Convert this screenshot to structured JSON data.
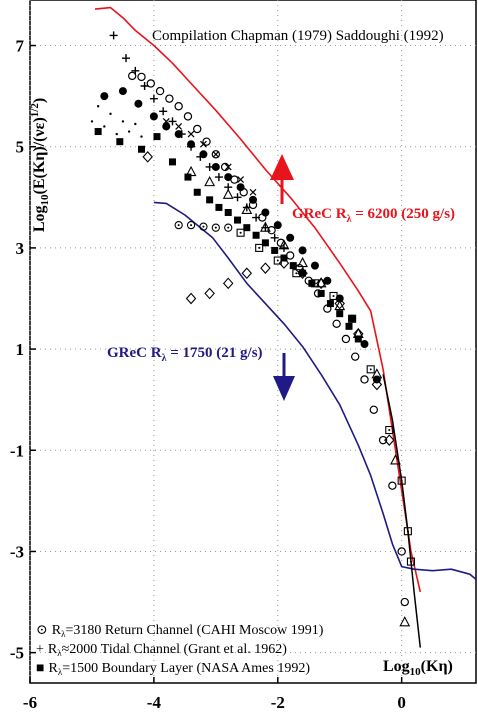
{
  "chart_data": {
    "type": "scatter",
    "title": "Compilation Chapman (1979) Saddoughi (1992)",
    "xlabel_main": "Log",
    "xlabel_sub": "10",
    "xlabel_tail": "(Kη)",
    "ylabel_main": "Log",
    "ylabel_sub": "10",
    "ylabel_tail": "(E(Kη)/(νε)",
    "ylabel_exp": "1/2",
    "ylabel_close": ")",
    "xlim": [
      -6,
      1.2
    ],
    "ylim": [
      -5.6,
      7.9
    ],
    "xticks": [
      -6,
      -4,
      -2,
      0
    ],
    "xtick_labels": [
      "-6",
      "-4",
      "-2",
      "0"
    ],
    "yticks": [
      7,
      5,
      3,
      1,
      -1,
      -3,
      -5
    ],
    "ytick_labels": [
      "7",
      "5",
      "3",
      "1",
      "-1",
      "-3",
      "-5"
    ],
    "grid": true,
    "annotations": {
      "red": {
        "lead": "GReC R",
        "sub": "λ",
        "tail": " = 6200 (250 g/s)",
        "color": "#e8141b"
      },
      "blue": {
        "lead": "GReC R",
        "sub": "λ",
        "tail": " = 1750 (21 g/s)",
        "color": "#1f1a85"
      }
    },
    "legend": [
      {
        "symbol": "⊙",
        "lead": "R",
        "sub": "λ",
        "tail": "=3180 Return Channel (CAHI Moscow 1991)"
      },
      {
        "symbol": "+",
        "lead": "R",
        "sub": "λ",
        "tail": "≈2000 Tidal Channel (Grant et al. 1962)"
      },
      {
        "symbol": "■",
        "lead": "R",
        "sub": "λ",
        "tail": "=1500 Boundary Layer (NASA Ames 1992)"
      }
    ],
    "series": [
      {
        "name": "GReC Rλ = 6200 (250 g/s)",
        "color": "#e8141b",
        "style": "line",
        "x": [
          -4.95,
          -4.7,
          -4.5,
          -4.3,
          -4.0,
          -3.7,
          -3.4,
          -3.0,
          -2.6,
          -2.2,
          -1.8,
          -1.4,
          -1.0,
          -0.7,
          -0.5,
          -0.3,
          -0.15,
          0.0,
          0.15,
          0.3
        ],
        "y": [
          7.72,
          7.75,
          7.55,
          7.3,
          7.0,
          6.65,
          6.25,
          5.72,
          5.15,
          4.55,
          4.0,
          3.4,
          2.7,
          2.15,
          1.75,
          0.6,
          -0.6,
          -1.8,
          -3.0,
          -3.8
        ]
      },
      {
        "name": "GReC Rλ = 1750 (21 g/s)",
        "color": "#1f1a85",
        "style": "line",
        "x": [
          -4.0,
          -3.8,
          -3.5,
          -3.3,
          -3.05,
          -2.8,
          -2.5,
          -2.2,
          -1.9,
          -1.6,
          -1.3,
          -1.0,
          -0.7,
          -0.5,
          -0.3,
          -0.15,
          0.0,
          0.2,
          0.5,
          0.8,
          1.1,
          1.2
        ],
        "y": [
          3.9,
          3.88,
          3.65,
          3.45,
          3.2,
          2.8,
          2.3,
          1.9,
          1.5,
          1.05,
          0.5,
          -0.1,
          -0.9,
          -1.5,
          -2.25,
          -2.85,
          -3.3,
          -3.35,
          -3.38,
          -3.35,
          -3.45,
          -3.55
        ]
      },
      {
        "name": "Rλ=3180 Return Channel (CAHI Moscow 1991)",
        "marker": "circle-open",
        "x": [
          -4.35,
          -4.2,
          -4.05,
          -3.9,
          -3.75,
          -3.6,
          -3.45,
          -3.3,
          -3.15,
          -3.0,
          -2.85,
          -2.7,
          -2.55,
          -2.4,
          -2.25,
          -2.1,
          -1.95,
          -1.8,
          -1.65,
          -1.5,
          -1.35,
          -1.2,
          -1.05,
          -0.9,
          -0.75,
          -0.6,
          -0.45,
          -0.3,
          -0.15,
          0.0,
          0.05
        ],
        "y": [
          6.4,
          6.38,
          6.25,
          6.1,
          5.95,
          5.8,
          5.6,
          5.35,
          5.1,
          4.85,
          4.6,
          4.35,
          4.1,
          3.85,
          3.6,
          3.35,
          3.1,
          2.85,
          2.6,
          2.35,
          2.1,
          1.8,
          1.5,
          1.2,
          0.85,
          0.4,
          -0.2,
          -0.8,
          -1.7,
          -3.0,
          -4.0
        ]
      },
      {
        "name": "Rλ≈2000 Tidal Channel (Grant et al. 1962)",
        "marker": "plus",
        "x": [
          -4.65,
          -4.45,
          -4.3,
          -4.15,
          -4.0,
          -3.85,
          -3.7,
          -3.55,
          -3.4,
          -3.25,
          -3.1,
          -2.95,
          -2.8,
          -2.65,
          -2.5,
          -2.35,
          -2.2,
          -2.05,
          -1.9
        ],
        "y": [
          7.2,
          6.75,
          6.5,
          6.2,
          5.95,
          5.7,
          5.5,
          5.25,
          5.0,
          4.8,
          4.6,
          4.4,
          4.2,
          4.0,
          3.8,
          3.6,
          3.4,
          3.2,
          3.0
        ]
      },
      {
        "name": "filled circles",
        "marker": "circle-filled",
        "x": [
          -4.8,
          -4.5,
          -4.25,
          -4.0,
          -3.8,
          -3.6,
          -3.4,
          -3.2,
          -3.0,
          -2.8,
          -2.6,
          -2.4,
          -2.2,
          -2.0,
          -1.8,
          -1.6,
          -1.4,
          -1.2,
          -1.0,
          -0.8,
          -0.6,
          -0.4
        ],
        "y": [
          6.0,
          6.1,
          5.85,
          5.6,
          5.4,
          5.25,
          5.05,
          4.85,
          4.6,
          4.4,
          4.2,
          3.95,
          3.7,
          3.45,
          3.2,
          2.95,
          2.65,
          2.35,
          2.0,
          1.6,
          1.1,
          0.4
        ]
      },
      {
        "name": "Rλ=1500 Boundary Layer (NASA Ames 1992)",
        "marker": "square-filled",
        "x": [
          -4.9,
          -4.55,
          -4.2,
          -3.95,
          -3.7,
          -3.45,
          -3.3,
          -3.1,
          -2.95,
          -2.8,
          -2.65,
          -2.5,
          -2.35,
          -2.2,
          -2.05,
          -1.9,
          -1.75,
          -1.6,
          -1.45,
          -1.3,
          -1.15,
          -1.0,
          -0.85,
          -0.7
        ],
        "y": [
          5.3,
          5.1,
          4.95,
          5.2,
          4.7,
          4.4,
          4.1,
          3.95,
          3.8,
          3.7,
          3.55,
          3.4,
          3.25,
          3.1,
          2.95,
          2.8,
          2.65,
          2.5,
          2.3,
          2.1,
          1.9,
          1.7,
          1.45,
          1.2
        ]
      },
      {
        "name": "small dots",
        "marker": "dot",
        "x": [
          -5.0,
          -4.9,
          -4.8,
          -4.7,
          -4.6,
          -4.5,
          -4.4,
          -4.3,
          -4.2
        ],
        "y": [
          5.5,
          5.8,
          5.4,
          5.65,
          5.25,
          5.5,
          5.3,
          5.45,
          5.2
        ]
      },
      {
        "name": "crosses",
        "marker": "cross",
        "x": [
          -3.8,
          -3.6,
          -3.4,
          -3.2,
          -3.0,
          -2.8,
          -2.6,
          -2.4
        ],
        "y": [
          5.5,
          5.4,
          5.25,
          5.05,
          4.85,
          4.6,
          4.35,
          4.1
        ]
      },
      {
        "name": "open triangles",
        "marker": "triangle-open",
        "x": [
          -3.4,
          -3.1,
          -2.8,
          -2.5,
          -2.2,
          -1.9,
          -1.6,
          -1.3,
          -1.0,
          -0.7,
          -0.4,
          -0.1,
          0.05
        ],
        "y": [
          4.5,
          4.3,
          4.05,
          3.75,
          3.4,
          3.05,
          2.7,
          2.3,
          1.85,
          1.3,
          0.5,
          -1.2,
          -4.4
        ]
      },
      {
        "name": "open diamonds",
        "marker": "diamond-open",
        "x": [
          -4.1,
          -3.4,
          -3.1,
          -2.8,
          -2.5,
          -2.2,
          -1.9,
          -1.6,
          -1.3,
          -1.0,
          -0.7,
          -0.4,
          -0.2
        ],
        "y": [
          4.8,
          2.0,
          2.1,
          2.3,
          2.5,
          2.6,
          2.7,
          2.5,
          2.3,
          1.9,
          1.3,
          0.3,
          -0.8
        ]
      },
      {
        "name": "circles with dot",
        "marker": "circle-dot",
        "x": [
          -3.6,
          -3.4,
          -3.2,
          -3.0,
          -2.8
        ],
        "y": [
          3.45,
          3.45,
          3.42,
          3.4,
          3.4
        ]
      },
      {
        "name": "open squares with dot",
        "marker": "square-dot",
        "x": [
          -2.6,
          -2.3,
          -2.0,
          -1.7,
          -1.4,
          -1.1,
          -0.8,
          -0.5,
          -0.2,
          0.0,
          0.1,
          0.15
        ],
        "y": [
          3.3,
          3.0,
          2.75,
          2.5,
          2.3,
          2.05,
          1.6,
          0.6,
          -0.6,
          -1.6,
          -2.6,
          -3.2
        ]
      },
      {
        "name": "Kolmogorov reference",
        "color": "#000000",
        "style": "line",
        "x": [
          -0.3,
          -0.15,
          0.0,
          0.1,
          0.2,
          0.3
        ],
        "y": [
          0.5,
          -0.4,
          -1.6,
          -2.6,
          -3.8,
          -4.9
        ]
      }
    ]
  }
}
